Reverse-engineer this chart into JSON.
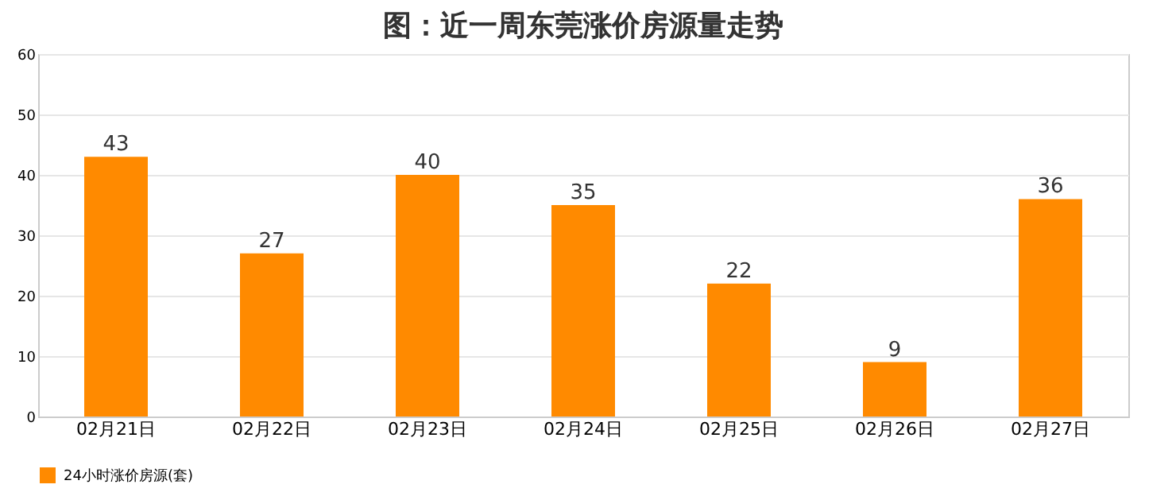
{
  "chart_data": {
    "type": "bar",
    "title": "图：近一周东莞涨价房源量走势",
    "categories": [
      "02月21日",
      "02月22日",
      "02月23日",
      "02月24日",
      "02月25日",
      "02月26日",
      "02月27日"
    ],
    "series": [
      {
        "name": "24小时涨价房源(套)",
        "color": "#ff8a00",
        "values": [
          43,
          27,
          40,
          35,
          22,
          9,
          36
        ]
      }
    ],
    "ylim": [
      0,
      60
    ],
    "yticks": [
      0,
      10,
      20,
      30,
      40,
      50,
      60
    ],
    "grid": "y",
    "legend": "bottom",
    "data_labels": true
  }
}
